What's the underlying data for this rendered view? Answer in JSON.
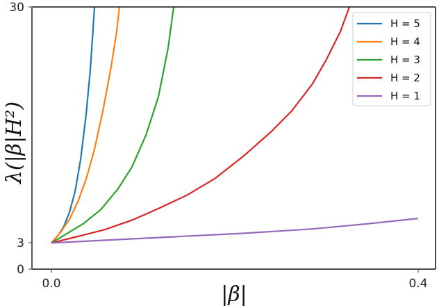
{
  "chart_data": {
    "type": "line",
    "title": "",
    "xlabel": "|β|",
    "ylabel": "λ(|β|H²)",
    "xlim": [
      -0.02,
      0.42
    ],
    "ylim": [
      0,
      30
    ],
    "xticks": [
      0.0,
      0.4
    ],
    "xtick_labels": [
      "0.0",
      "0.4"
    ],
    "yticks": [
      0,
      3,
      30
    ],
    "ytick_labels": [
      "0",
      "3",
      "30"
    ],
    "grid": false,
    "legend_position": "upper right",
    "series": [
      {
        "name": "H = 5",
        "color": "#1f77b4",
        "x": [
          0.0,
          0.0076,
          0.0136,
          0.0197,
          0.0258,
          0.0318,
          0.0379,
          0.0424,
          0.0455,
          0.047
        ],
        "y": [
          3.0,
          3.9,
          4.9,
          6.5,
          8.9,
          12.5,
          17.7,
          22.8,
          27.6,
          30.0
        ]
      },
      {
        "name": "H = 4",
        "color": "#ff7f0e",
        "x": [
          0.0,
          0.0106,
          0.0197,
          0.0288,
          0.0379,
          0.047,
          0.0561,
          0.0652,
          0.0712,
          0.0742
        ],
        "y": [
          3.0,
          4.3,
          5.7,
          7.7,
          10.3,
          13.7,
          18.1,
          23.2,
          27.2,
          30.0
        ]
      },
      {
        "name": "H = 3",
        "color": "#2ca02c",
        "x": [
          0.0,
          0.0159,
          0.0348,
          0.0538,
          0.0727,
          0.0879,
          0.103,
          0.1167,
          0.1273,
          0.1333
        ],
        "y": [
          3.0,
          4.0,
          5.2,
          6.8,
          9.2,
          11.7,
          15.3,
          19.7,
          25.3,
          30.0
        ]
      },
      {
        "name": "H = 2",
        "color": "#d62728",
        "x": [
          0.0,
          0.0273,
          0.0576,
          0.0879,
          0.1182,
          0.1485,
          0.1788,
          0.2091,
          0.2394,
          0.2621,
          0.2848,
          0.3,
          0.3152,
          0.325
        ],
        "y": [
          3.0,
          3.7,
          4.5,
          5.6,
          7.0,
          8.5,
          10.4,
          12.9,
          15.7,
          18.1,
          21.2,
          24.0,
          27.2,
          30.0
        ]
      },
      {
        "name": "H = 1",
        "color": "#9467bd",
        "x": [
          0.0,
          0.0576,
          0.1333,
          0.2091,
          0.2848,
          0.3455,
          0.4
        ],
        "y": [
          3.0,
          3.3,
          3.7,
          4.1,
          4.6,
          5.2,
          5.8
        ]
      }
    ]
  }
}
